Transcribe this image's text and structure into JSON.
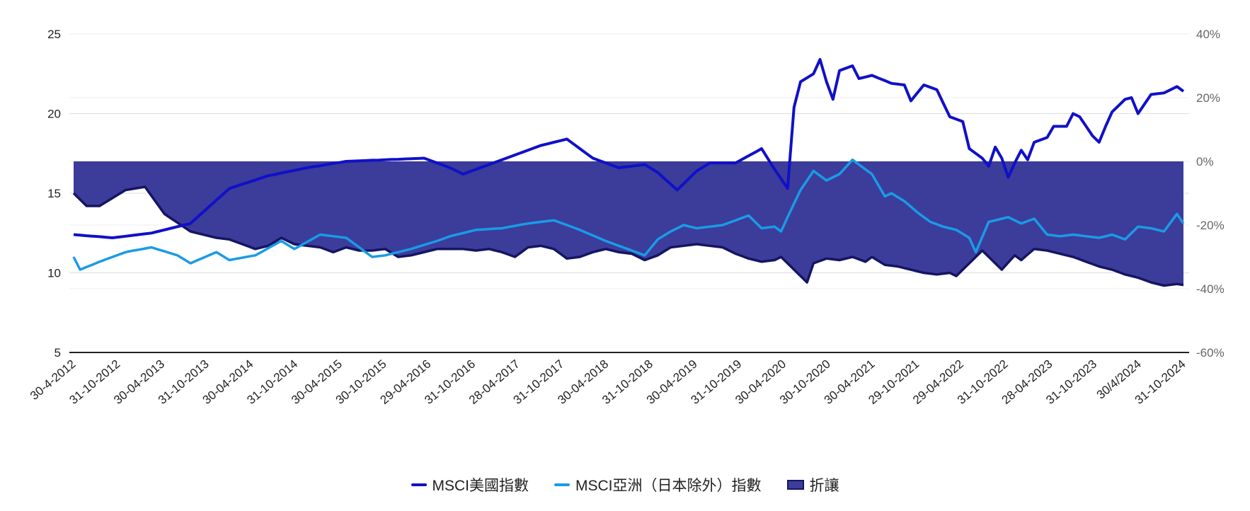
{
  "colors": {
    "us": "#1010C8",
    "asia": "#1A9BE6",
    "discount_fill": "#3C3C9A",
    "discount_line": "#151563",
    "grid": "#dddddd",
    "axis": "#222222",
    "tick_text": "#222222",
    "right_tick_text": "#666666"
  },
  "legend": {
    "us": "MSCI美國指數",
    "asia": "MSCI亞洲（日本除外）指數",
    "discount": "折讓"
  },
  "chart_data": {
    "type": "line",
    "title": "",
    "xlabel": "",
    "ylabel": "",
    "y_left_ticks": [
      "25",
      "20",
      "15",
      "10",
      "5"
    ],
    "y_left_range": [
      5,
      25
    ],
    "y_right_ticks": [
      "40%",
      "20%",
      "0%",
      "-20%",
      "-40%",
      "-60%"
    ],
    "y_right_range": [
      -60,
      40
    ],
    "x_tick_labels": [
      "30-4-2012",
      "31-10-2012",
      "30-04-2013",
      "31-10-2013",
      "30-04-2014",
      "31-10-2014",
      "30-04-2015",
      "30-10-2015",
      "29-04-2016",
      "31-10-2016",
      "28-04-2017",
      "31-10-2017",
      "30-04-2018",
      "31-10-2018",
      "30-04-2019",
      "31-10-2019",
      "30-04-2020",
      "30-10-2020",
      "30-04-2021",
      "29-10-2021",
      "29-04-2022",
      "31-10-2022",
      "28-04-2023",
      "31-10-2023",
      "30/4/2024",
      "31-10-2024"
    ],
    "legend_position": "bottom",
    "grid": true,
    "series": [
      {
        "name": "MSCI美國指數",
        "axis": "left",
        "key": "us",
        "anchors": [
          [
            0,
            12.4
          ],
          [
            6,
            12.2
          ],
          [
            12,
            12.5
          ],
          [
            18,
            13.1
          ],
          [
            24,
            15.3
          ],
          [
            30,
            16.1
          ],
          [
            36,
            16.6
          ],
          [
            42,
            17.0
          ],
          [
            48,
            17.1
          ],
          [
            54,
            17.2
          ],
          [
            58,
            16.6
          ],
          [
            60,
            16.2
          ],
          [
            66,
            17.1
          ],
          [
            72,
            18.0
          ],
          [
            76,
            18.4
          ],
          [
            80,
            17.2
          ],
          [
            84,
            16.6
          ],
          [
            88,
            16.8
          ],
          [
            90,
            16.3
          ],
          [
            93,
            15.2
          ],
          [
            96,
            16.4
          ],
          [
            98,
            16.9
          ],
          [
            102,
            16.9
          ],
          [
            106,
            17.8
          ],
          [
            108,
            16.5
          ],
          [
            110,
            15.3
          ],
          [
            111,
            20.4
          ],
          [
            112,
            22.0
          ],
          [
            114,
            22.5
          ],
          [
            115,
            23.4
          ],
          [
            116,
            22.0
          ],
          [
            117,
            20.9
          ],
          [
            118,
            22.7
          ],
          [
            120,
            23.0
          ],
          [
            121,
            22.2
          ],
          [
            123,
            22.4
          ],
          [
            126,
            21.9
          ],
          [
            128,
            21.8
          ],
          [
            129,
            20.8
          ],
          [
            131,
            21.8
          ],
          [
            133,
            21.5
          ],
          [
            135,
            19.8
          ],
          [
            137,
            19.5
          ],
          [
            138,
            17.8
          ],
          [
            140,
            17.2
          ],
          [
            141,
            16.7
          ],
          [
            142,
            17.9
          ],
          [
            143,
            17.2
          ],
          [
            144,
            16.0
          ],
          [
            145,
            16.9
          ],
          [
            146,
            17.7
          ],
          [
            147,
            17.1
          ],
          [
            148,
            18.2
          ],
          [
            150,
            18.5
          ],
          [
            151,
            19.2
          ],
          [
            153,
            19.2
          ],
          [
            154,
            20.0
          ],
          [
            155,
            19.8
          ],
          [
            157,
            18.6
          ],
          [
            158,
            18.2
          ],
          [
            159,
            19.2
          ],
          [
            160,
            20.1
          ],
          [
            162,
            20.9
          ],
          [
            163,
            21.0
          ],
          [
            164,
            20.0
          ],
          [
            166,
            21.2
          ],
          [
            168,
            21.3
          ],
          [
            170,
            21.7
          ],
          [
            171,
            21.4
          ]
        ],
        "values": []
      },
      {
        "name": "MSCI亞洲（日本除外）指數",
        "axis": "left",
        "key": "asia",
        "anchors": [
          [
            0,
            11.0
          ],
          [
            1,
            10.2
          ],
          [
            4,
            10.7
          ],
          [
            8,
            11.3
          ],
          [
            12,
            11.6
          ],
          [
            16,
            11.1
          ],
          [
            18,
            10.6
          ],
          [
            22,
            11.3
          ],
          [
            24,
            10.8
          ],
          [
            28,
            11.1
          ],
          [
            32,
            12.0
          ],
          [
            34,
            11.5
          ],
          [
            38,
            12.4
          ],
          [
            42,
            12.2
          ],
          [
            46,
            11.0
          ],
          [
            48,
            11.1
          ],
          [
            52,
            11.5
          ],
          [
            56,
            12.0
          ],
          [
            58,
            12.3
          ],
          [
            62,
            12.7
          ],
          [
            66,
            12.8
          ],
          [
            70,
            13.1
          ],
          [
            74,
            13.3
          ],
          [
            78,
            12.7
          ],
          [
            82,
            12.0
          ],
          [
            86,
            11.4
          ],
          [
            88,
            11.1
          ],
          [
            90,
            12.1
          ],
          [
            92,
            12.6
          ],
          [
            94,
            13.0
          ],
          [
            96,
            12.8
          ],
          [
            100,
            13.0
          ],
          [
            104,
            13.6
          ],
          [
            106,
            12.8
          ],
          [
            108,
            12.9
          ],
          [
            109,
            12.6
          ],
          [
            110,
            13.5
          ],
          [
            112,
            15.2
          ],
          [
            114,
            16.4
          ],
          [
            116,
            15.8
          ],
          [
            118,
            16.2
          ],
          [
            120,
            17.1
          ],
          [
            121,
            16.8
          ],
          [
            123,
            16.2
          ],
          [
            125,
            14.8
          ],
          [
            126,
            15.0
          ],
          [
            128,
            14.5
          ],
          [
            130,
            13.8
          ],
          [
            132,
            13.2
          ],
          [
            134,
            12.9
          ],
          [
            136,
            12.7
          ],
          [
            138,
            12.2
          ],
          [
            139,
            11.3
          ],
          [
            141,
            13.2
          ],
          [
            142,
            13.3
          ],
          [
            144,
            13.5
          ],
          [
            146,
            13.1
          ],
          [
            148,
            13.4
          ],
          [
            150,
            12.4
          ],
          [
            152,
            12.3
          ],
          [
            154,
            12.4
          ],
          [
            156,
            12.3
          ],
          [
            158,
            12.2
          ],
          [
            160,
            12.4
          ],
          [
            162,
            12.1
          ],
          [
            164,
            12.9
          ],
          [
            166,
            12.8
          ],
          [
            168,
            12.6
          ],
          [
            170,
            13.7
          ],
          [
            171,
            13.1
          ]
        ],
        "values": []
      },
      {
        "name": "折讓",
        "axis": "right",
        "key": "discount",
        "anchors": [
          [
            0,
            -10.0
          ],
          [
            2,
            -14.0
          ],
          [
            4,
            -14.0
          ],
          [
            8,
            -9.0
          ],
          [
            11,
            -8.0
          ],
          [
            14,
            -16.5
          ],
          [
            18,
            -22.0
          ],
          [
            22,
            -24.0
          ],
          [
            24,
            -24.5
          ],
          [
            26,
            -26.0
          ],
          [
            28,
            -27.5
          ],
          [
            30,
            -26.5
          ],
          [
            32,
            -24.0
          ],
          [
            34,
            -26.0
          ],
          [
            38,
            -27.0
          ],
          [
            40,
            -28.5
          ],
          [
            42,
            -27.0
          ],
          [
            44,
            -28.0
          ],
          [
            46,
            -28.0
          ],
          [
            48,
            -27.5
          ],
          [
            50,
            -30.0
          ],
          [
            52,
            -29.5
          ],
          [
            54,
            -28.5
          ],
          [
            56,
            -27.5
          ],
          [
            58,
            -27.5
          ],
          [
            60,
            -27.5
          ],
          [
            62,
            -28.0
          ],
          [
            64,
            -27.5
          ],
          [
            66,
            -28.5
          ],
          [
            68,
            -30.0
          ],
          [
            70,
            -27.0
          ],
          [
            72,
            -26.5
          ],
          [
            74,
            -27.5
          ],
          [
            76,
            -30.5
          ],
          [
            78,
            -30.0
          ],
          [
            80,
            -28.5
          ],
          [
            82,
            -27.5
          ],
          [
            84,
            -28.5
          ],
          [
            86,
            -29.0
          ],
          [
            88,
            -31.0
          ],
          [
            90,
            -29.5
          ],
          [
            92,
            -27.0
          ],
          [
            94,
            -26.5
          ],
          [
            96,
            -26.0
          ],
          [
            98,
            -26.5
          ],
          [
            100,
            -27.0
          ],
          [
            102,
            -29.0
          ],
          [
            104,
            -30.5
          ],
          [
            106,
            -31.5
          ],
          [
            108,
            -31.0
          ],
          [
            109,
            -30.0
          ],
          [
            110,
            -32.0
          ],
          [
            112,
            -36.0
          ],
          [
            113,
            -38.0
          ],
          [
            114,
            -32.0
          ],
          [
            116,
            -30.5
          ],
          [
            118,
            -31.0
          ],
          [
            120,
            -30.0
          ],
          [
            122,
            -31.5
          ],
          [
            123,
            -30.0
          ],
          [
            125,
            -32.5
          ],
          [
            127,
            -33.0
          ],
          [
            129,
            -34.0
          ],
          [
            131,
            -35.0
          ],
          [
            133,
            -35.5
          ],
          [
            135,
            -35.0
          ],
          [
            136,
            -36.0
          ],
          [
            138,
            -32.0
          ],
          [
            140,
            -28.0
          ],
          [
            141,
            -30.0
          ],
          [
            143,
            -34.0
          ],
          [
            145,
            -29.5
          ],
          [
            146,
            -31.0
          ],
          [
            148,
            -27.5
          ],
          [
            150,
            -28.0
          ],
          [
            152,
            -29.0
          ],
          [
            154,
            -30.0
          ],
          [
            156,
            -31.5
          ],
          [
            158,
            -33.0
          ],
          [
            160,
            -34.0
          ],
          [
            162,
            -35.5
          ],
          [
            164,
            -36.5
          ],
          [
            166,
            -38.0
          ],
          [
            168,
            -39.0
          ],
          [
            170,
            -38.5
          ],
          [
            171,
            -38.8
          ]
        ],
        "values": []
      }
    ]
  }
}
